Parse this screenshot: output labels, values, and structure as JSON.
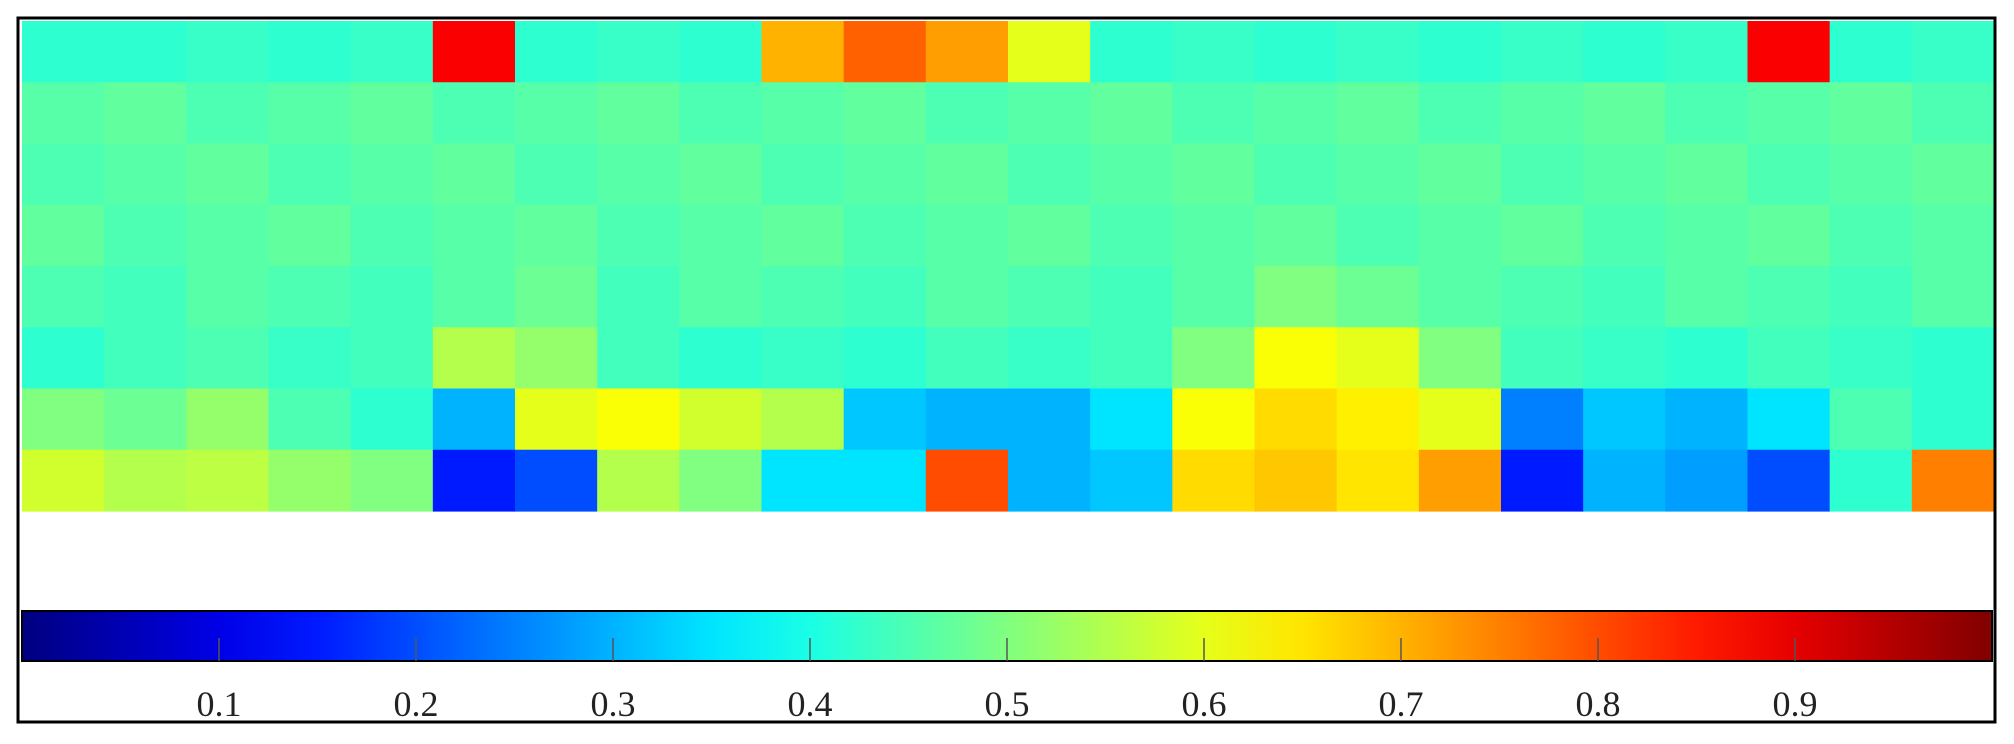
{
  "chart_data": {
    "type": "heatmap",
    "colormap": "jet",
    "z": [
      [
        0.42,
        0.42,
        0.43,
        0.42,
        0.43,
        0.88,
        0.42,
        0.43,
        0.42,
        0.7,
        0.78,
        0.72,
        0.6,
        0.42,
        0.43,
        0.42,
        0.43,
        0.42,
        0.43,
        0.42,
        0.43,
        0.88,
        0.42,
        0.43
      ],
      [
        0.46,
        0.47,
        0.45,
        0.46,
        0.47,
        0.45,
        0.46,
        0.47,
        0.45,
        0.46,
        0.47,
        0.45,
        0.46,
        0.47,
        0.45,
        0.46,
        0.47,
        0.45,
        0.46,
        0.47,
        0.45,
        0.46,
        0.47,
        0.45
      ],
      [
        0.45,
        0.46,
        0.47,
        0.45,
        0.46,
        0.47,
        0.45,
        0.46,
        0.47,
        0.45,
        0.46,
        0.47,
        0.45,
        0.46,
        0.47,
        0.45,
        0.46,
        0.47,
        0.45,
        0.46,
        0.47,
        0.45,
        0.46,
        0.47
      ],
      [
        0.47,
        0.45,
        0.46,
        0.47,
        0.45,
        0.46,
        0.47,
        0.45,
        0.46,
        0.47,
        0.45,
        0.46,
        0.47,
        0.45,
        0.46,
        0.47,
        0.45,
        0.46,
        0.47,
        0.45,
        0.46,
        0.47,
        0.45,
        0.46
      ],
      [
        0.45,
        0.44,
        0.46,
        0.45,
        0.44,
        0.46,
        0.48,
        0.44,
        0.46,
        0.45,
        0.44,
        0.46,
        0.45,
        0.44,
        0.46,
        0.5,
        0.48,
        0.46,
        0.45,
        0.44,
        0.46,
        0.45,
        0.44,
        0.46
      ],
      [
        0.42,
        0.44,
        0.45,
        0.43,
        0.44,
        0.55,
        0.52,
        0.44,
        0.42,
        0.43,
        0.42,
        0.44,
        0.43,
        0.44,
        0.5,
        0.62,
        0.6,
        0.5,
        0.44,
        0.43,
        0.42,
        0.44,
        0.43,
        0.42
      ],
      [
        0.5,
        0.48,
        0.52,
        0.45,
        0.42,
        0.3,
        0.6,
        0.62,
        0.58,
        0.55,
        0.32,
        0.3,
        0.3,
        0.35,
        0.62,
        0.66,
        0.64,
        0.6,
        0.25,
        0.32,
        0.3,
        0.35,
        0.45,
        0.42
      ],
      [
        0.58,
        0.55,
        0.56,
        0.52,
        0.5,
        0.15,
        0.2,
        0.55,
        0.5,
        0.35,
        0.35,
        0.8,
        0.3,
        0.32,
        0.66,
        0.68,
        0.65,
        0.72,
        0.15,
        0.3,
        0.28,
        0.2,
        0.42,
        0.75
      ]
    ],
    "zlim": [
      0,
      1
    ],
    "colorbar_ticks": [
      0.1,
      0.2,
      0.3,
      0.4,
      0.5,
      0.6,
      0.7,
      0.8,
      0.9
    ]
  }
}
